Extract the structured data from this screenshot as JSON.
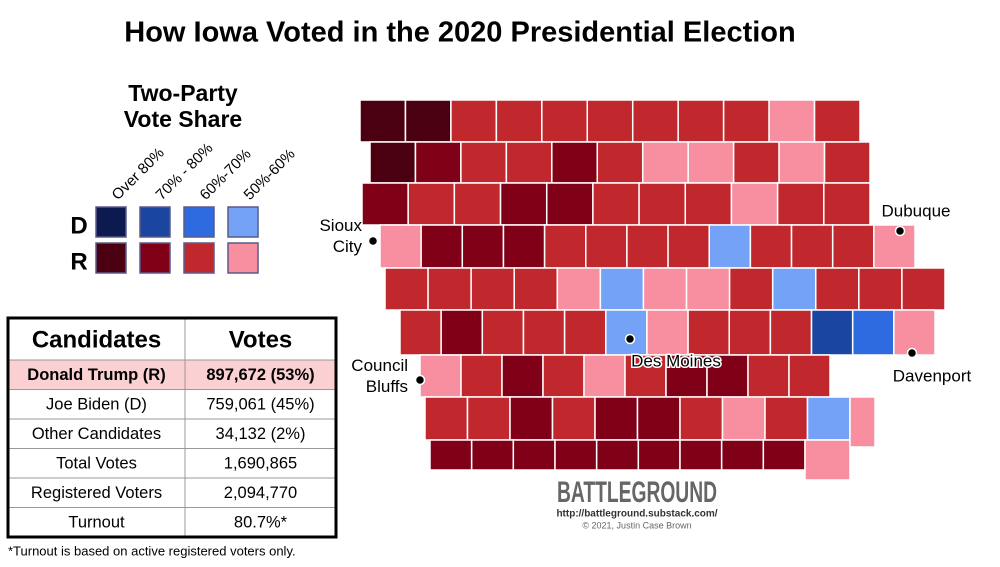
{
  "title": "How Iowa Voted in the 2020 Presidential Election",
  "legend": {
    "title_lines": [
      "Two-Party",
      "Vote Share"
    ],
    "columns": [
      "Over 80%",
      "70% - 80%",
      "60%-70%",
      "50%-60%"
    ],
    "rows": [
      {
        "label": "D",
        "colors": [
          "#0d1a4f",
          "#1a45a0",
          "#2e6ae0",
          "#73a2f7"
        ]
      },
      {
        "label": "R",
        "colors": [
          "#4a0010",
          "#800018",
          "#c0282e",
          "#f78fa0"
        ]
      }
    ]
  },
  "table": {
    "header": [
      "Candidates",
      "Votes"
    ],
    "highlighted_row": 0,
    "rows": [
      [
        "Donald Trump (R)",
        "897,672 (53%)"
      ],
      [
        "Joe Biden (D)",
        "759,061 (45%)"
      ],
      [
        "Other Candidates",
        "34,132 (2%)"
      ],
      [
        "Total Votes",
        "1,690,865"
      ],
      [
        "Registered Voters",
        "2,094,770"
      ],
      [
        "Turnout",
        "80.7%*"
      ]
    ]
  },
  "footnote": "*Turnout is based on active registered voters only.",
  "cities": [
    {
      "lines": [
        "Sioux",
        "City"
      ]
    },
    {
      "lines": [
        "Council",
        "Bluffs"
      ]
    },
    {
      "lines": [
        "Des Moines"
      ]
    },
    {
      "lines": [
        "Dubuque"
      ]
    },
    {
      "lines": [
        "Davenport"
      ]
    }
  ],
  "watermark": {
    "brand": "BATTLEGROUND",
    "url": "http://battleground.substack.com/",
    "credit": "© 2021, Justin Case Brown"
  }
}
